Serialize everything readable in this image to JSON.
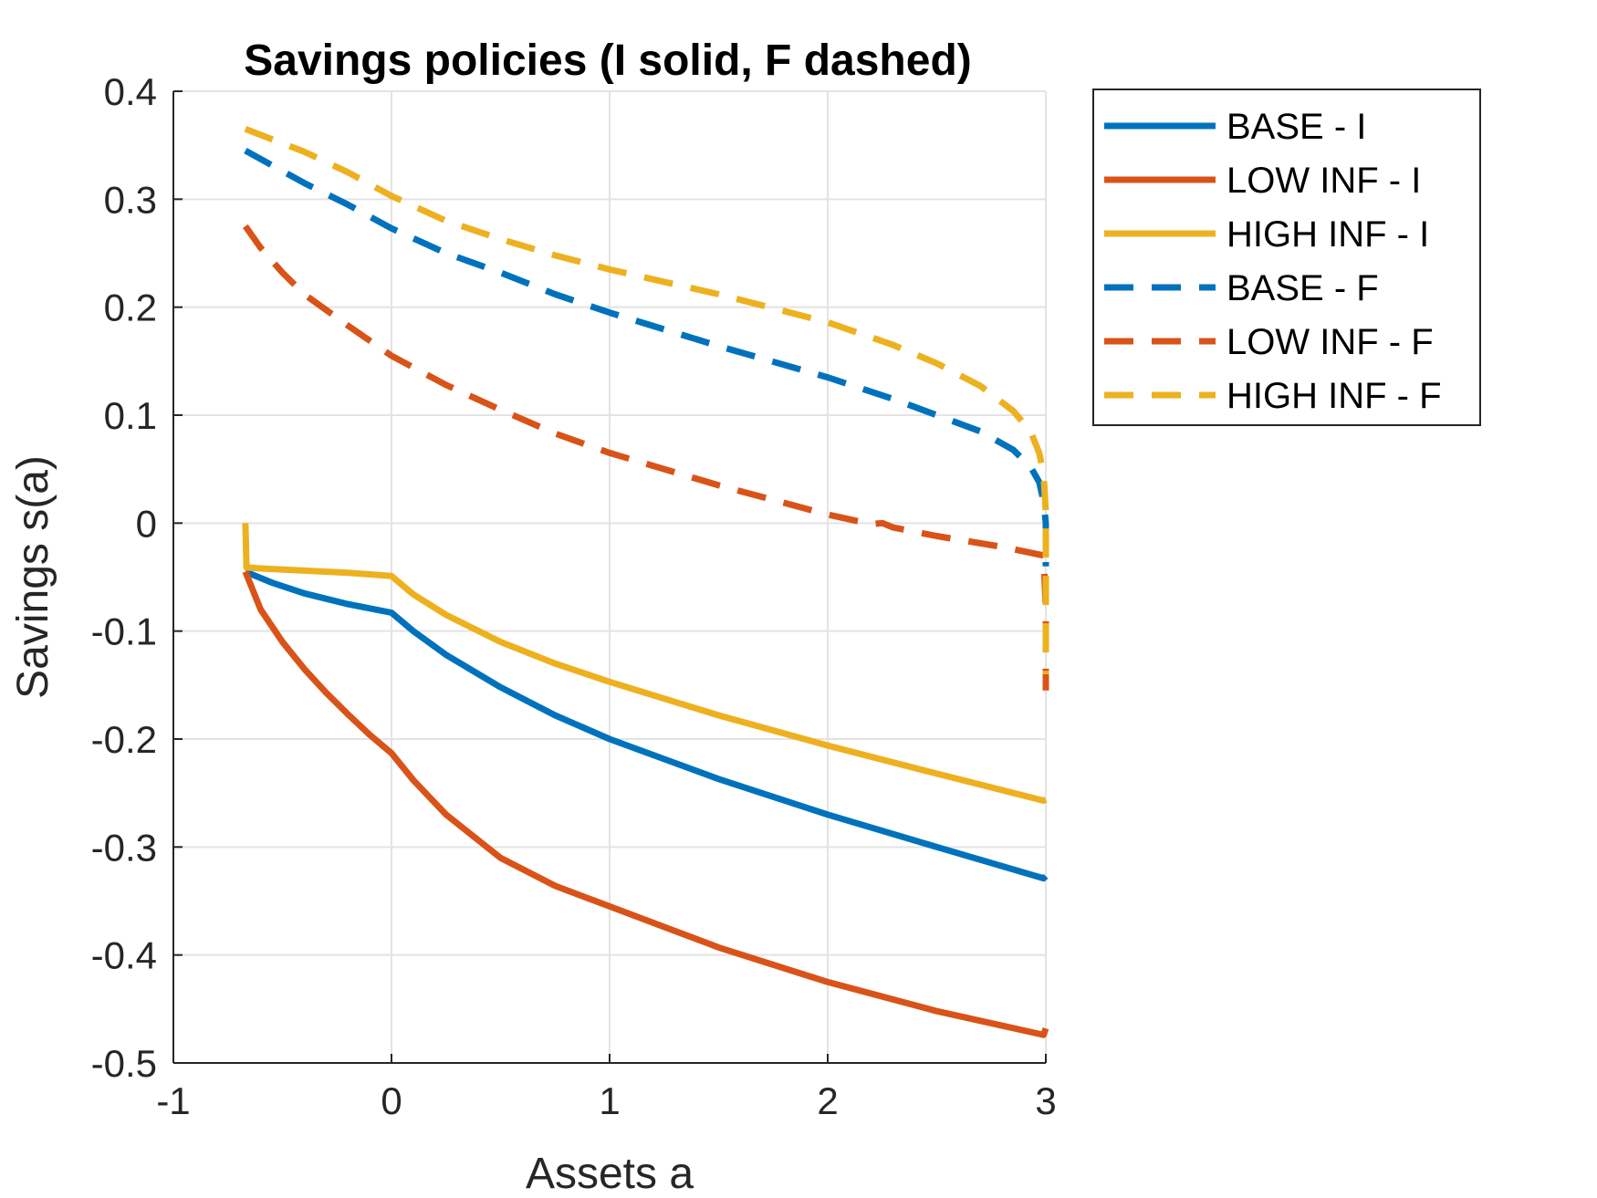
{
  "chart_data": {
    "type": "line",
    "title": "Savings policies (I solid, F dashed)",
    "xlabel": "Assets a",
    "ylabel": "Savings s(a)",
    "xlim": [
      -1,
      3
    ],
    "ylim": [
      -0.5,
      0.4
    ],
    "xticks": [
      -1,
      0,
      1,
      2,
      3
    ],
    "yticks": [
      -0.5,
      -0.4,
      -0.3,
      -0.2,
      -0.1,
      0,
      0.1,
      0.2,
      0.3,
      0.4
    ],
    "xtick_labels": [
      "-1",
      "0",
      "1",
      "2",
      "3"
    ],
    "ytick_labels": [
      "-0.5",
      "-0.4",
      "-0.3",
      "-0.2",
      "-0.1",
      "0",
      "0.1",
      "0.2",
      "0.3",
      "0.4"
    ],
    "grid": true,
    "legend_position": "outside-right-top",
    "series": [
      {
        "name": "BASE - I",
        "style": "solid",
        "color": "#0072BD",
        "x": [
          -0.67,
          -0.55,
          -0.4,
          -0.2,
          0,
          0.1,
          0.25,
          0.5,
          0.75,
          1,
          1.5,
          2,
          2.5,
          2.99,
          3
        ],
        "y": [
          -0.045,
          -0.055,
          -0.065,
          -0.075,
          -0.083,
          -0.1,
          -0.122,
          -0.152,
          -0.178,
          -0.2,
          -0.237,
          -0.27,
          -0.3,
          -0.329,
          -0.327
        ]
      },
      {
        "name": "LOW INF - I",
        "style": "solid",
        "color": "#D95319",
        "x": [
          -0.67,
          -0.6,
          -0.5,
          -0.4,
          -0.3,
          -0.2,
          -0.1,
          0,
          0.1,
          0.25,
          0.5,
          0.75,
          1,
          1.5,
          2,
          2.5,
          2.99,
          3
        ],
        "y": [
          -0.045,
          -0.08,
          -0.11,
          -0.135,
          -0.157,
          -0.177,
          -0.196,
          -0.213,
          -0.238,
          -0.27,
          -0.31,
          -0.336,
          -0.355,
          -0.393,
          -0.425,
          -0.452,
          -0.474,
          -0.468
        ]
      },
      {
        "name": "HIGH INF - I",
        "style": "solid",
        "color": "#EDB120",
        "x": [
          -0.67,
          -0.665,
          -0.6,
          -0.4,
          -0.2,
          0,
          0.1,
          0.25,
          0.5,
          0.75,
          1,
          1.5,
          2,
          2.5,
          2.99,
          3
        ],
        "y": [
          0.0,
          -0.041,
          -0.042,
          -0.044,
          -0.046,
          -0.049,
          -0.066,
          -0.085,
          -0.11,
          -0.13,
          -0.147,
          -0.178,
          -0.206,
          -0.232,
          -0.257,
          -0.256
        ]
      },
      {
        "name": "BASE - F",
        "style": "dashed",
        "color": "#0072BD",
        "x": [
          -0.67,
          -0.4,
          -0.2,
          0,
          0.25,
          0.5,
          0.75,
          1,
          1.5,
          2,
          2.3,
          2.5,
          2.7,
          2.85,
          2.93,
          2.97,
          2.99,
          3.0,
          3.0
        ],
        "y": [
          0.345,
          0.315,
          0.295,
          0.273,
          0.25,
          0.232,
          0.212,
          0.195,
          0.164,
          0.135,
          0.115,
          0.1,
          0.085,
          0.068,
          0.052,
          0.038,
          0.02,
          0.0,
          -0.04
        ]
      },
      {
        "name": "LOW INF - F",
        "style": "dashed",
        "color": "#D95319",
        "x": [
          -0.67,
          -0.6,
          -0.5,
          -0.4,
          -0.2,
          0,
          0.25,
          0.5,
          0.75,
          1,
          1.5,
          2,
          2.2,
          2.25,
          2.3,
          2.5,
          2.8,
          2.99,
          3.0,
          3.0
        ],
        "y": [
          0.275,
          0.255,
          0.232,
          0.212,
          0.183,
          0.155,
          0.128,
          0.105,
          0.083,
          0.065,
          0.035,
          0.008,
          -0.001,
          0.0,
          -0.004,
          -0.012,
          -0.022,
          -0.03,
          -0.08,
          -0.155
        ]
      },
      {
        "name": "HIGH INF - F",
        "style": "dashed",
        "color": "#EDB120",
        "x": [
          -0.67,
          -0.4,
          -0.2,
          0,
          0.25,
          0.5,
          0.75,
          1,
          1.5,
          2,
          2.3,
          2.5,
          2.7,
          2.85,
          2.93,
          2.97,
          2.99,
          3.0,
          3.0
        ],
        "y": [
          0.365,
          0.344,
          0.325,
          0.303,
          0.28,
          0.263,
          0.248,
          0.235,
          0.212,
          0.186,
          0.165,
          0.148,
          0.127,
          0.104,
          0.085,
          0.065,
          0.045,
          0.01,
          -0.14
        ]
      }
    ]
  }
}
